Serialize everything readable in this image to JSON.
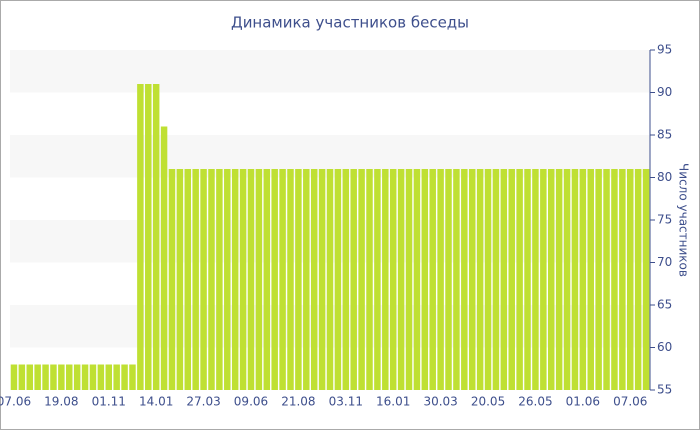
{
  "chart_data": {
    "type": "bar",
    "title": "Динамика участников беседы",
    "y_label": "Число участников",
    "categories": [
      "07.06",
      null,
      null,
      null,
      null,
      null,
      "19.08",
      null,
      null,
      null,
      null,
      null,
      "01.11",
      null,
      null,
      null,
      null,
      null,
      "14.01",
      null,
      null,
      null,
      null,
      null,
      "27.03",
      null,
      null,
      null,
      null,
      null,
      "09.06",
      null,
      null,
      null,
      null,
      null,
      "21.08",
      null,
      null,
      null,
      null,
      null,
      "03.11",
      null,
      null,
      null,
      null,
      null,
      "16.01",
      null,
      null,
      null,
      null,
      null,
      "30.03",
      null,
      null,
      null,
      null,
      null,
      "20.05",
      null,
      null,
      null,
      null,
      null,
      "26.05",
      null,
      null,
      null,
      null,
      null,
      "01.06",
      null,
      null,
      null,
      null,
      null,
      "07.06",
      null,
      null
    ],
    "values": [
      58,
      58,
      58,
      58,
      58,
      58,
      58,
      58,
      58,
      58,
      58,
      58,
      58,
      58,
      58,
      58,
      91,
      91,
      91,
      86,
      81,
      81,
      81,
      81,
      81,
      81,
      81,
      81,
      81,
      81,
      81,
      81,
      81,
      81,
      81,
      81,
      81,
      81,
      81,
      81,
      81,
      81,
      81,
      81,
      81,
      81,
      81,
      81,
      81,
      81,
      81,
      81,
      81,
      81,
      81,
      81,
      81,
      81,
      81,
      81,
      81,
      81,
      81,
      81,
      81,
      81,
      81,
      81,
      81,
      81,
      81,
      81,
      81,
      81,
      81,
      81,
      81,
      81,
      81,
      81,
      81
    ],
    "color": "#bfe033",
    "ylim": [
      55,
      95
    ],
    "yticks": [
      55,
      60,
      65,
      70,
      75,
      80,
      85,
      90,
      95
    ],
    "grid": true
  }
}
